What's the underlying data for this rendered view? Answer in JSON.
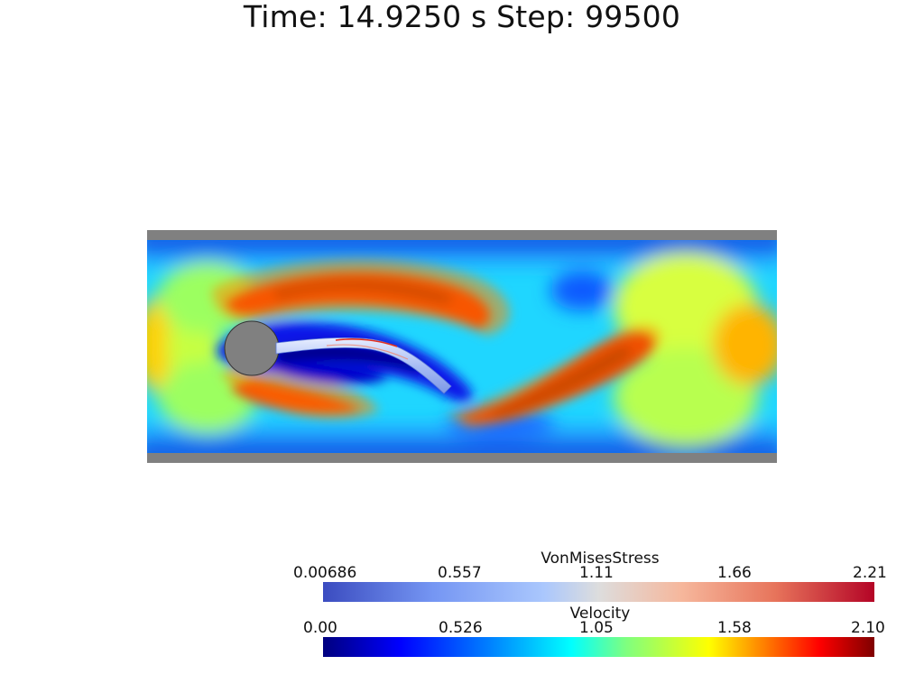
{
  "header": {
    "title": "Time: 14.9250 s  Step: 99500"
  },
  "scene": {
    "wall_color": "#808080",
    "cylinder_color": "#808080",
    "field": "Velocity"
  },
  "legends": {
    "stress": {
      "title": "VonMisesStress",
      "ticks": [
        "0.00686",
        "0.557",
        "1.11",
        "1.66",
        "2.21"
      ],
      "range": [
        0.00686,
        2.21
      ],
      "colormap": "cool-to-warm"
    },
    "velocity": {
      "title": "Velocity",
      "ticks": [
        "0.00",
        "0.526",
        "1.05",
        "1.58",
        "2.10"
      ],
      "range": [
        0.0,
        2.1
      ],
      "colormap": "jet"
    }
  }
}
